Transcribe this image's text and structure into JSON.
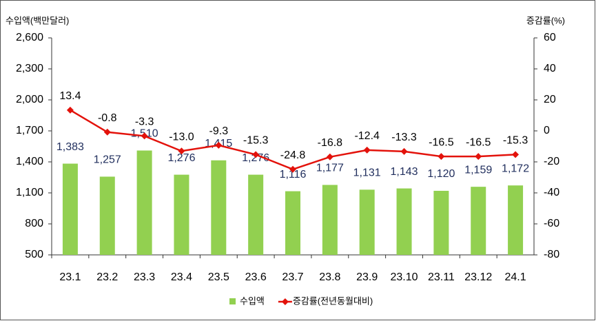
{
  "chart_data": {
    "type": "bar",
    "y_label": "수입액(백만달러)",
    "y2_label": "증감률(%)",
    "categories": [
      "23.1",
      "23.2",
      "23.3",
      "23.4",
      "23.5",
      "23.6",
      "23.7",
      "23.8",
      "23.9",
      "23.10",
      "23.11",
      "23.12",
      "24.1"
    ],
    "series": [
      {
        "name": "수입액",
        "color": "#92d050",
        "type": "bar",
        "values": [
          1383,
          1257,
          1510,
          1276,
          1415,
          1276,
          1116,
          1177,
          1131,
          1143,
          1120,
          1159,
          1172
        ],
        "value_labels": [
          "1,383",
          "1,257",
          "1,510",
          "1,276",
          "1,415",
          "1,276",
          "1,116",
          "1,177",
          "1,131",
          "1,143",
          "1,120",
          "1,159",
          "1,172"
        ]
      },
      {
        "name": "증감률(전년동월대비)",
        "color": "#e3120b",
        "type": "line",
        "axis": "y2",
        "values": [
          13.4,
          -0.8,
          -3.3,
          -13.0,
          -9.3,
          -15.3,
          -24.8,
          -16.8,
          -12.4,
          -13.3,
          -16.5,
          -16.5,
          -15.3
        ],
        "value_labels": [
          "13.4",
          "-0.8",
          "-3.3",
          "-13.0",
          "-9.3",
          "-15.3",
          "-24.8",
          "-16.8",
          "-12.4",
          "-13.3",
          "-16.5",
          "-16.5",
          "-15.3"
        ]
      }
    ],
    "ylim": [
      500,
      2600
    ],
    "yticks": [
      500,
      800,
      {
        "value": 1100,
        "label": "1,100"
      },
      {
        "value": 1400,
        "label": "1,400"
      },
      {
        "value": 1700,
        "label": "1,700"
      },
      {
        "value": 2000,
        "label": "2,000"
      },
      {
        "value": 2300,
        "label": "2,300"
      },
      {
        "value": 2600,
        "label": "2,600"
      }
    ],
    "y2lim": [
      -80,
      60
    ],
    "y2ticks": [
      -80,
      -60,
      -40,
      -20,
      0,
      20,
      40,
      60
    ],
    "grid": false
  }
}
